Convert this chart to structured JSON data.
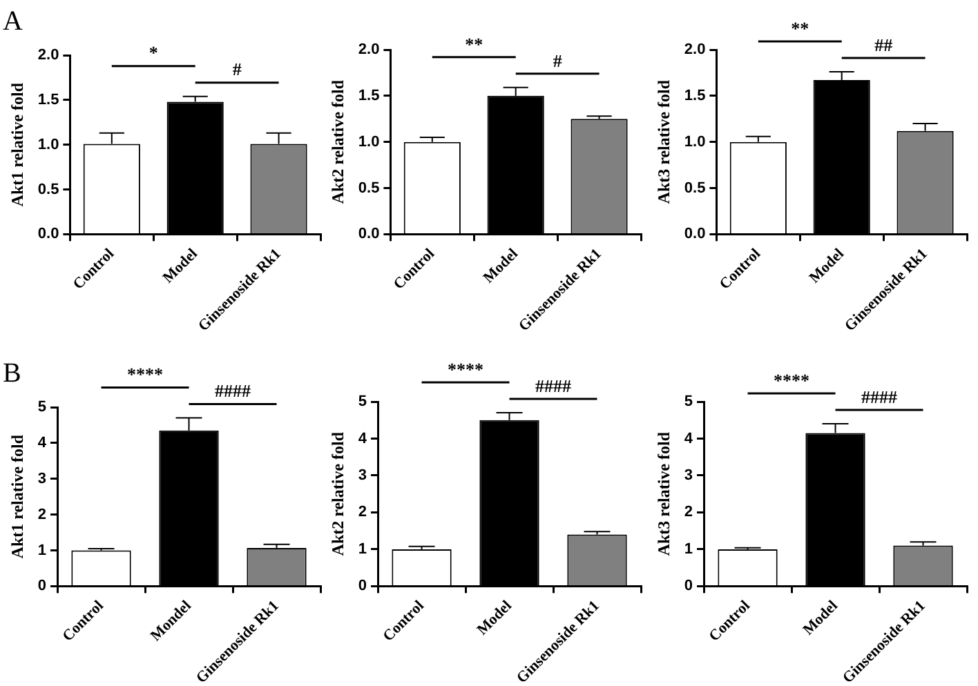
{
  "chart_data": [
    {
      "type": "bar",
      "title": "A",
      "ylabel": "Akt1 relative fold",
      "categories": [
        "Control",
        "Model",
        "Ginsenoside Rk1"
      ],
      "values": [
        1.01,
        1.48,
        1.01
      ],
      "errors": [
        [
          1.01,
          1.13
        ],
        [
          1.48,
          1.54
        ],
        [
          1.01,
          1.13
        ]
      ],
      "colors": [
        "#ffffff",
        "#000000",
        "#808080"
      ],
      "ylim": [
        0,
        2
      ],
      "yticks": [
        {
          "value": 0,
          "label": "0.0"
        },
        {
          "value": 0.5,
          "label": "0.5"
        },
        {
          "value": 1,
          "label": "1.0"
        },
        {
          "value": 1.5,
          "label": "1.5"
        },
        {
          "value": 2,
          "label": "2.0"
        }
      ],
      "annotations": [
        "*",
        "#"
      ],
      "legend": false,
      "grid": false
    },
    {
      "type": "bar",
      "ylabel": "Akt2 relative fold",
      "categories": [
        "Control",
        "Model",
        "Ginsenoside Rk1"
      ],
      "values": [
        1.0,
        1.5,
        1.25
      ],
      "errors": [
        [
          1.0,
          1.05
        ],
        [
          1.5,
          1.59
        ],
        [
          1.25,
          1.28
        ]
      ],
      "colors": [
        "#ffffff",
        "#000000",
        "#808080"
      ],
      "ylim": [
        0,
        2
      ],
      "yticks": [
        {
          "value": 0,
          "label": "0.0"
        },
        {
          "value": 0.5,
          "label": "0.5"
        },
        {
          "value": 1,
          "label": "1.0"
        },
        {
          "value": 1.5,
          "label": "1.5"
        },
        {
          "value": 2,
          "label": "2.0"
        }
      ],
      "annotations": [
        "**",
        "#"
      ],
      "legend": false,
      "grid": false
    },
    {
      "type": "bar",
      "ylabel": "Akt3 relative fold",
      "categories": [
        "Control",
        "Model",
        "Ginsenoside Rk1"
      ],
      "values": [
        1.0,
        1.67,
        1.12
      ],
      "errors": [
        [
          1.0,
          1.06
        ],
        [
          1.67,
          1.76
        ],
        [
          1.12,
          1.2
        ]
      ],
      "colors": [
        "#ffffff",
        "#000000",
        "#808080"
      ],
      "ylim": [
        0,
        2
      ],
      "yticks": [
        {
          "value": 0,
          "label": "0.0"
        },
        {
          "value": 0.5,
          "label": "0.5"
        },
        {
          "value": 1,
          "label": "1.0"
        },
        {
          "value": 1.5,
          "label": "1.5"
        },
        {
          "value": 2,
          "label": "2.0"
        }
      ],
      "annotations": [
        "**",
        "##"
      ],
      "legend": false,
      "grid": false
    },
    {
      "type": "bar",
      "title": "B",
      "ylabel": "Akt1 relative fold",
      "categories": [
        "Control",
        "Mondel",
        "Ginsenoside Rk1"
      ],
      "values": [
        1.0,
        4.35,
        1.07
      ],
      "errors": [
        [
          1.0,
          1.05
        ],
        [
          4.35,
          4.7
        ],
        [
          1.07,
          1.17
        ]
      ],
      "colors": [
        "#ffffff",
        "#000000",
        "#808080"
      ],
      "ylim": [
        0,
        5
      ],
      "yticks": [
        0,
        1,
        2,
        3,
        4,
        5
      ],
      "annotations": [
        "****",
        "####"
      ],
      "legend": false,
      "grid": false
    },
    {
      "type": "bar",
      "ylabel": "Akt2 relative fold",
      "categories": [
        "Control",
        "Model",
        "Ginsenoside Rk1"
      ],
      "values": [
        1.0,
        4.5,
        1.4
      ],
      "errors": [
        [
          1.0,
          1.08
        ],
        [
          4.5,
          4.7
        ],
        [
          1.4,
          1.48
        ]
      ],
      "colors": [
        "#ffffff",
        "#000000",
        "#808080"
      ],
      "ylim": [
        0,
        5
      ],
      "yticks": [
        0,
        1,
        2,
        3,
        4,
        5
      ],
      "annotations": [
        "****",
        "####"
      ],
      "legend": false,
      "grid": false
    },
    {
      "type": "bar",
      "ylabel": "Akt3 relative fold",
      "categories": [
        "Control",
        "Model",
        "Ginsenoside Rk1"
      ],
      "values": [
        1.0,
        4.15,
        1.1
      ],
      "errors": [
        [
          1.0,
          1.04
        ],
        [
          4.15,
          4.4
        ],
        [
          1.1,
          1.2
        ]
      ],
      "colors": [
        "#ffffff",
        "#000000",
        "#808080"
      ],
      "ylim": [
        0,
        5
      ],
      "yticks": [
        0,
        1,
        2,
        3,
        4,
        5
      ],
      "annotations": [
        "****",
        "####"
      ],
      "legend": false,
      "grid": false
    }
  ]
}
